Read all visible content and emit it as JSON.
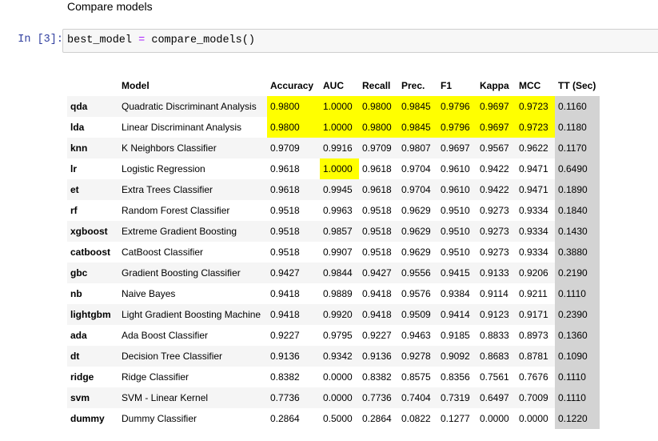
{
  "heading": "Compare models",
  "cell": {
    "prompt": "In [3]:",
    "code_var": "best_model",
    "code_op": "=",
    "code_call": "compare_models()"
  },
  "table": {
    "columns": [
      "",
      "Model",
      "Accuracy",
      "AUC",
      "Recall",
      "Prec.",
      "F1",
      "Kappa",
      "MCC",
      "TT (Sec)"
    ],
    "rows": [
      [
        "qda",
        "Quadratic Discriminant Analysis",
        "0.9800",
        "1.0000",
        "0.9800",
        "0.9845",
        "0.9796",
        "0.9697",
        "0.9723",
        "0.1160"
      ],
      [
        "lda",
        "Linear Discriminant Analysis",
        "0.9800",
        "1.0000",
        "0.9800",
        "0.9845",
        "0.9796",
        "0.9697",
        "0.9723",
        "0.1180"
      ],
      [
        "knn",
        "K Neighbors Classifier",
        "0.9709",
        "0.9916",
        "0.9709",
        "0.9807",
        "0.9697",
        "0.9567",
        "0.9622",
        "0.1170"
      ],
      [
        "lr",
        "Logistic Regression",
        "0.9618",
        "1.0000",
        "0.9618",
        "0.9704",
        "0.9610",
        "0.9422",
        "0.9471",
        "0.6490"
      ],
      [
        "et",
        "Extra Trees Classifier",
        "0.9618",
        "0.9945",
        "0.9618",
        "0.9704",
        "0.9610",
        "0.9422",
        "0.9471",
        "0.1890"
      ],
      [
        "rf",
        "Random Forest Classifier",
        "0.9518",
        "0.9963",
        "0.9518",
        "0.9629",
        "0.9510",
        "0.9273",
        "0.9334",
        "0.1840"
      ],
      [
        "xgboost",
        "Extreme Gradient Boosting",
        "0.9518",
        "0.9857",
        "0.9518",
        "0.9629",
        "0.9510",
        "0.9273",
        "0.9334",
        "0.1430"
      ],
      [
        "catboost",
        "CatBoost Classifier",
        "0.9518",
        "0.9907",
        "0.9518",
        "0.9629",
        "0.9510",
        "0.9273",
        "0.9334",
        "0.3880"
      ],
      [
        "gbc",
        "Gradient Boosting Classifier",
        "0.9427",
        "0.9844",
        "0.9427",
        "0.9556",
        "0.9415",
        "0.9133",
        "0.9206",
        "0.2190"
      ],
      [
        "nb",
        "Naive Bayes",
        "0.9418",
        "0.9889",
        "0.9418",
        "0.9576",
        "0.9384",
        "0.9114",
        "0.9211",
        "0.1110"
      ],
      [
        "lightgbm",
        "Light Gradient Boosting Machine",
        "0.9418",
        "0.9920",
        "0.9418",
        "0.9509",
        "0.9414",
        "0.9123",
        "0.9171",
        "0.2390"
      ],
      [
        "ada",
        "Ada Boost Classifier",
        "0.9227",
        "0.9795",
        "0.9227",
        "0.9463",
        "0.9185",
        "0.8833",
        "0.8973",
        "0.1360"
      ],
      [
        "dt",
        "Decision Tree Classifier",
        "0.9136",
        "0.9342",
        "0.9136",
        "0.9278",
        "0.9092",
        "0.8683",
        "0.8781",
        "0.1090"
      ],
      [
        "ridge",
        "Ridge Classifier",
        "0.8382",
        "0.0000",
        "0.8382",
        "0.8575",
        "0.8356",
        "0.7561",
        "0.7676",
        "0.1110"
      ],
      [
        "svm",
        "SVM - Linear Kernel",
        "0.7736",
        "0.0000",
        "0.7736",
        "0.7404",
        "0.7319",
        "0.6497",
        "0.7009",
        "0.1110"
      ],
      [
        "dummy",
        "Dummy Classifier",
        "0.2864",
        "0.5000",
        "0.2864",
        "0.0822",
        "0.1277",
        "0.0000",
        "0.0000",
        "0.1220"
      ]
    ],
    "highlighted": [
      [
        0,
        2
      ],
      [
        0,
        3
      ],
      [
        0,
        4
      ],
      [
        0,
        5
      ],
      [
        0,
        6
      ],
      [
        0,
        7
      ],
      [
        0,
        8
      ],
      [
        1,
        2
      ],
      [
        1,
        3
      ],
      [
        1,
        4
      ],
      [
        1,
        5
      ],
      [
        1,
        6
      ],
      [
        1,
        7
      ],
      [
        1,
        8
      ],
      [
        3,
        3
      ]
    ],
    "colors": {
      "highlight": "#ffff00",
      "tt_column": "#d3d3d3",
      "row_stripe": "#f5f5f5",
      "prompt": "#303f9f"
    }
  }
}
